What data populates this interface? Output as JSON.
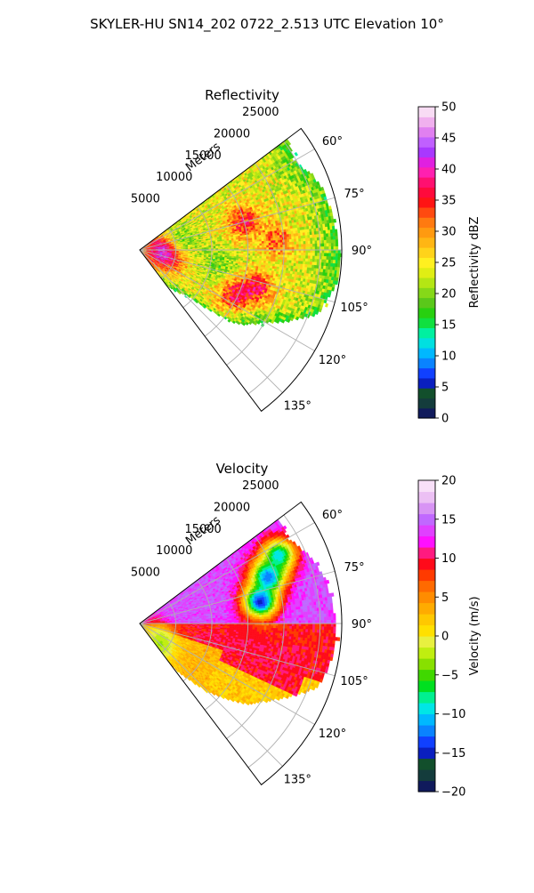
{
  "title": "SKYLER-HU  SN14_202  0722_2.513 UTC Elevation 10°",
  "chart_data": [
    {
      "type": "heatmap",
      "title": "Reflectivity",
      "radial_label": "Meters",
      "r_ticks": [
        5000,
        10000,
        15000,
        20000,
        25000
      ],
      "r_tick_labels": [
        "5000",
        "10000",
        "15000",
        "20000",
        "25000"
      ],
      "rmax": 28000,
      "theta_range_deg": [
        53,
        143
      ],
      "theta_ticks_deg": [
        60,
        75,
        90,
        105,
        120,
        135
      ],
      "theta_tick_labels": [
        "60°",
        "75°",
        "90°",
        "105°",
        "120°",
        "135°"
      ],
      "colorbar": {
        "label": "Reflectivity dBZ",
        "range": [
          0,
          50
        ],
        "ticks": [
          0,
          5,
          10,
          15,
          20,
          25,
          30,
          35,
          40,
          45,
          50
        ],
        "tick_labels": [
          "0",
          "5",
          "10",
          "15",
          "20",
          "25",
          "30",
          "35",
          "40",
          "45",
          "50"
        ]
      },
      "field": {
        "coverage_ranges": [
          {
            "theta": 53,
            "r": 25500
          },
          {
            "theta": 60,
            "r": 24500
          },
          {
            "theta": 70,
            "r": 26500
          },
          {
            "theta": 80,
            "r": 27000
          },
          {
            "theta": 90,
            "r": 27500
          },
          {
            "theta": 100,
            "r": 27500
          },
          {
            "theta": 110,
            "r": 26000
          },
          {
            "theta": 120,
            "r": 20000
          },
          {
            "theta": 127,
            "r": 17000
          },
          {
            "theta": 134,
            "r": 9000
          },
          {
            "theta": 143,
            "r": 6000
          }
        ],
        "typical_value": 24,
        "features": [
          {
            "theta": 88,
            "r": 2500,
            "value": 36
          },
          {
            "theta": 106,
            "r": 4500,
            "value": 36
          },
          {
            "theta": 75,
            "r": 15000,
            "value": 36
          },
          {
            "theta": 108,
            "r": 17000,
            "value": 36
          },
          {
            "theta": 116,
            "r": 14500,
            "value": 35
          },
          {
            "theta": 86,
            "r": 19000,
            "value": 33
          },
          {
            "theta": 100,
            "r": 11000,
            "value": 19
          },
          {
            "theta": 80,
            "r": 6000,
            "value": 19
          }
        ]
      }
    },
    {
      "type": "heatmap",
      "title": "Velocity",
      "radial_label": "Meters",
      "r_ticks": [
        5000,
        10000,
        15000,
        20000,
        25000
      ],
      "r_tick_labels": [
        "5000",
        "10000",
        "15000",
        "20000",
        "25000"
      ],
      "rmax": 28000,
      "theta_range_deg": [
        53,
        143
      ],
      "theta_ticks_deg": [
        60,
        75,
        90,
        105,
        120,
        135
      ],
      "theta_tick_labels": [
        "60°",
        "75°",
        "90°",
        "105°",
        "120°",
        "135°"
      ],
      "colorbar": {
        "label": "Velocity (m/s)",
        "range": [
          -20,
          20
        ],
        "ticks": [
          -20,
          -15,
          -10,
          -5,
          0,
          5,
          10,
          15,
          20
        ],
        "tick_labels": [
          "−20",
          "−15",
          "−10",
          "−5",
          "0",
          "5",
          "10",
          "15",
          "20"
        ]
      },
      "field": {
        "coverage_ranges": [
          {
            "theta": 53,
            "r": 24000
          },
          {
            "theta": 60,
            "r": 23500
          },
          {
            "theta": 70,
            "r": 25500
          },
          {
            "theta": 80,
            "r": 26500
          },
          {
            "theta": 90,
            "r": 27000
          },
          {
            "theta": 100,
            "r": 27000
          },
          {
            "theta": 110,
            "r": 26000
          },
          {
            "theta": 120,
            "r": 21000
          },
          {
            "theta": 127,
            "r": 18500
          },
          {
            "theta": 134,
            "r": 14000
          },
          {
            "theta": 143,
            "r": 7000
          }
        ],
        "regions": [
          {
            "theta_min": 53,
            "theta_max": 90,
            "value": 14
          },
          {
            "theta_min": 90,
            "theta_max": 108,
            "value": 9
          },
          {
            "theta_min": 108,
            "theta_max": 143,
            "value": 2
          }
        ],
        "features": [
          {
            "theta": 70,
            "r": 19000,
            "value": -13
          },
          {
            "theta": 80,
            "r": 17000,
            "value": -15
          },
          {
            "theta": 64,
            "r": 21500,
            "value": -10
          },
          {
            "theta": 97,
            "r": 15000,
            "value": 10
          },
          {
            "theta": 135,
            "r": 4000,
            "value": -3
          }
        ]
      }
    }
  ]
}
